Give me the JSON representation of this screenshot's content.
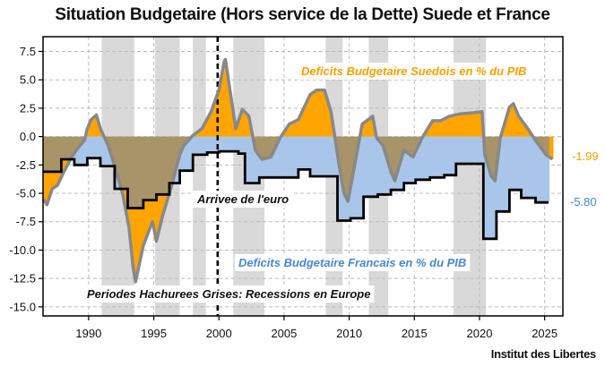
{
  "chart_data": {
    "type": "area",
    "title": "Situation Budgetaire (Hors service de la Dette) Suede et France",
    "xlabel": "",
    "ylabel": "",
    "xlim": [
      1986.5,
      2026.4
    ],
    "ylim": [
      -15.8,
      8.8
    ],
    "grid": true,
    "x_ticks": [
      1990,
      1995,
      2000,
      2005,
      2010,
      2015,
      2020,
      2025
    ],
    "y_ticks": [
      7.5,
      5.0,
      2.5,
      0.0,
      -2.5,
      -5.0,
      -7.5,
      -10.0,
      -12.5,
      -15.0
    ],
    "y_tick_labels": [
      "7.5",
      "5.0",
      "2.5",
      "0.0",
      "-2.5",
      "-5.0",
      "-7.5",
      "-10.0",
      "-12.5",
      "-15.0"
    ],
    "colors": {
      "sweden_line": "#888888",
      "france_line": "#000000",
      "sweden_surplus_fill": "#FFA500",
      "sweden_worse_fill": "#FFA500",
      "overlap_fill": "#A89468",
      "france_worse_fill": "#A9C6EA",
      "recession_band": "#D9D9D9",
      "sweden_label": "#F5A000",
      "france_label": "#4A86D0"
    },
    "recessions": [
      [
        1991.0,
        1993.5
      ],
      [
        1995.1,
        1997.0
      ],
      [
        1998.0,
        1999.0
      ],
      [
        2001.1,
        2003.5
      ],
      [
        2008.2,
        2009.5
      ],
      [
        2011.5,
        2013.0
      ],
      [
        2018.0,
        2020.5
      ]
    ],
    "euro_arrival_year": 1999.9,
    "series": [
      {
        "name": "Deficits Budgetaire Suedois en % du PIB",
        "style": "line",
        "x": [
          1986.5,
          1986.8,
          1987.2,
          1987.6,
          1988.1,
          1988.7,
          1989.2,
          1989.7,
          1989.9,
          1990.2,
          1990.6,
          1990.9,
          1991.5,
          1992.0,
          1992.6,
          1993.1,
          1993.4,
          1993.6,
          1994.2,
          1994.9,
          1995.2,
          1995.7,
          1996.3,
          1997.0,
          1997.3,
          1998.0,
          1998.7,
          1999.4,
          2000.0,
          2000.4,
          2000.5,
          2000.9,
          2001.3,
          2001.8,
          2002.3,
          2002.8,
          2003.3,
          2004.0,
          2004.7,
          2005.4,
          2006.1,
          2007.0,
          2007.5,
          2008.1,
          2008.6,
          2009.0,
          2009.2,
          2009.6,
          2009.9,
          2010.5,
          2011.0,
          2011.8,
          2012.1,
          2012.6,
          2013.2,
          2013.5,
          2014.2,
          2014.9,
          2015.6,
          2016.4,
          2017.0,
          2017.7,
          2018.5,
          2019.5,
          2020.2,
          2020.4,
          2020.9,
          2021.2,
          2021.6,
          2022.3,
          2022.6,
          2023.0,
          2023.7,
          2024.4,
          2025.1,
          2025.6
        ],
        "values": [
          -5.5,
          -6.0,
          -4.6,
          -4.3,
          -3.1,
          -1.8,
          -1.0,
          -0.3,
          0.7,
          1.5,
          1.9,
          0.7,
          -0.8,
          -2.6,
          -5.0,
          -8.0,
          -11.4,
          -12.8,
          -9.6,
          -7.5,
          -9.2,
          -6.9,
          -4.6,
          -1.6,
          -0.8,
          0.1,
          0.7,
          2.2,
          4.1,
          6.6,
          6.8,
          3.7,
          0.7,
          2.4,
          1.8,
          -1.2,
          -2.0,
          -1.8,
          -0.1,
          1.1,
          1.5,
          3.7,
          4.1,
          4.1,
          2.2,
          -0.8,
          -2.4,
          -5.0,
          -5.7,
          -2.0,
          1.1,
          1.8,
          -0.1,
          -0.8,
          -3.1,
          -3.9,
          -1.2,
          -1.8,
          -0.1,
          1.4,
          1.4,
          1.8,
          2.0,
          2.1,
          2.2,
          -1.6,
          -3.5,
          -3.9,
          -0.1,
          2.6,
          2.9,
          1.8,
          0.7,
          -0.5,
          -1.6,
          -1.99
        ]
      },
      {
        "name": "Deficits Budgetaire Francais en % du PIB",
        "style": "step",
        "x": [
          1986.5,
          1987.9,
          1988.9,
          1989.9,
          1990.9,
          1992.0,
          1993.0,
          1994.2,
          1995.2,
          1996.2,
          1997.0,
          1998.0,
          1999.1,
          2000.0,
          2001.5,
          2002.0,
          2003.1,
          2006.1,
          2007.0,
          2008.1,
          2009.1,
          2010.1,
          2011.1,
          2012.2,
          2013.2,
          2014.2,
          2015.1,
          2016.2,
          2017.3,
          2018.2,
          2020.3,
          2021.3,
          2022.3,
          2023.2,
          2024.3
        ],
        "values": [
          -3.1,
          -2.0,
          -2.5,
          -1.9,
          -2.6,
          -4.6,
          -6.3,
          -5.6,
          -5.1,
          -4.1,
          -3.0,
          -1.6,
          -1.4,
          -1.3,
          -1.5,
          -4.1,
          -3.6,
          -2.9,
          -3.5,
          -3.5,
          -7.4,
          -7.2,
          -5.3,
          -5.1,
          -4.7,
          -4.1,
          -3.8,
          -3.6,
          -3.4,
          -2.4,
          -9.0,
          -6.6,
          -4.7,
          -5.4,
          -5.8
        ],
        "end_x": 2025.3
      }
    ],
    "end_labels": {
      "sweden": "-1.99",
      "france": "-5.80"
    },
    "annotations": {
      "sweden": "Deficits Budgetaire Suedois en % du PIB",
      "france": "Deficits Budgetaire Francais en % du PIB",
      "euro": "Arrivee de l'euro",
      "recessions": "Periodes Hachurees Grises: Recessions en Europe"
    },
    "legend": "none"
  },
  "credit": "Institut des Libertes"
}
